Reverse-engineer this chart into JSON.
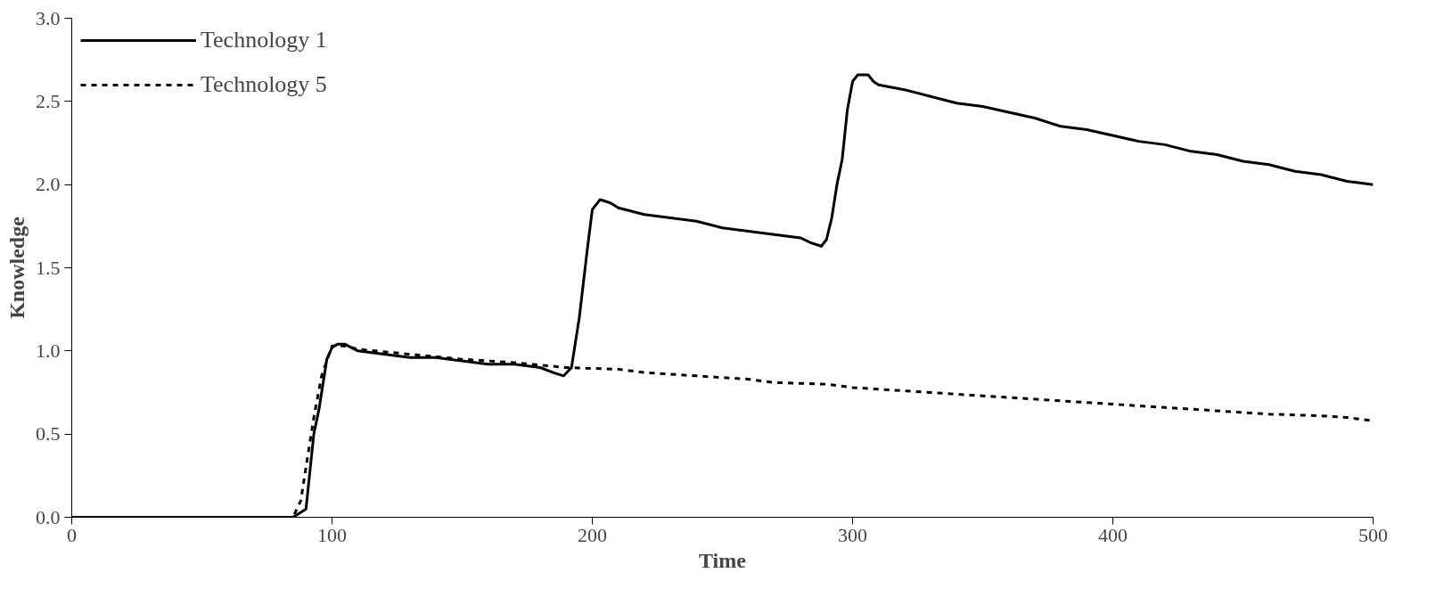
{
  "chart_data": {
    "type": "line",
    "xlabel": "Time",
    "ylabel": "Knowledge",
    "xlim": [
      0,
      500
    ],
    "xticks": [
      0,
      100,
      200,
      300,
      400,
      500
    ],
    "ylim": [
      0,
      3.0
    ],
    "yticks": [
      {
        "value": 0,
        "label": "0.0"
      },
      {
        "value": 0.5,
        "label": "0.5"
      },
      {
        "value": 1.0,
        "label": "1.0"
      },
      {
        "value": 1.5,
        "label": "1.5"
      },
      {
        "value": 2.0,
        "label": "2.0"
      },
      {
        "value": 2.5,
        "label": "2.5"
      },
      {
        "value": 3.0,
        "label": "3.0"
      }
    ],
    "grid": false,
    "legend": "top left",
    "series": [
      {
        "name": "Technology 1",
        "color": "#000000",
        "line_style": "solid",
        "x": [
          0,
          85,
          90,
          93,
          95,
          98,
          100,
          102,
          105,
          110,
          120,
          130,
          140,
          150,
          160,
          170,
          180,
          185,
          189,
          192,
          195,
          198,
          200,
          203,
          207,
          210,
          220,
          240,
          250,
          260,
          270,
          280,
          284,
          288,
          290,
          292,
          294,
          296,
          298,
          300,
          302,
          306,
          308,
          310,
          320,
          340,
          350,
          370,
          380,
          390,
          410,
          420,
          430,
          440,
          450,
          460,
          470,
          480,
          490,
          500
        ],
        "values": [
          0,
          0,
          0.05,
          0.5,
          0.65,
          0.95,
          1.02,
          1.04,
          1.04,
          1.0,
          0.98,
          0.96,
          0.96,
          0.94,
          0.92,
          0.92,
          0.9,
          0.87,
          0.85,
          0.9,
          1.2,
          1.6,
          1.85,
          1.91,
          1.89,
          1.86,
          1.82,
          1.78,
          1.74,
          1.72,
          1.7,
          1.68,
          1.65,
          1.63,
          1.67,
          1.8,
          2.0,
          2.15,
          2.45,
          2.62,
          2.66,
          2.66,
          2.62,
          2.6,
          2.57,
          2.49,
          2.47,
          2.4,
          2.35,
          2.33,
          2.26,
          2.24,
          2.2,
          2.18,
          2.14,
          2.12,
          2.08,
          2.06,
          2.02,
          2.0
        ]
      },
      {
        "name": "Technology 5",
        "color": "#000000",
        "line_style": "dashed",
        "x": [
          0,
          85,
          88,
          90,
          93,
          96,
          100,
          105,
          110,
          130,
          150,
          170,
          190,
          210,
          220,
          240,
          260,
          270,
          290,
          300,
          310,
          330,
          340,
          360,
          380,
          400,
          420,
          440,
          460,
          480,
          490,
          500
        ],
        "values": [
          0,
          0,
          0.1,
          0.3,
          0.6,
          0.85,
          1.03,
          1.03,
          1.01,
          0.98,
          0.95,
          0.93,
          0.9,
          0.89,
          0.87,
          0.85,
          0.83,
          0.81,
          0.8,
          0.78,
          0.77,
          0.75,
          0.74,
          0.72,
          0.7,
          0.68,
          0.66,
          0.64,
          0.62,
          0.61,
          0.6,
          0.58
        ]
      }
    ]
  }
}
